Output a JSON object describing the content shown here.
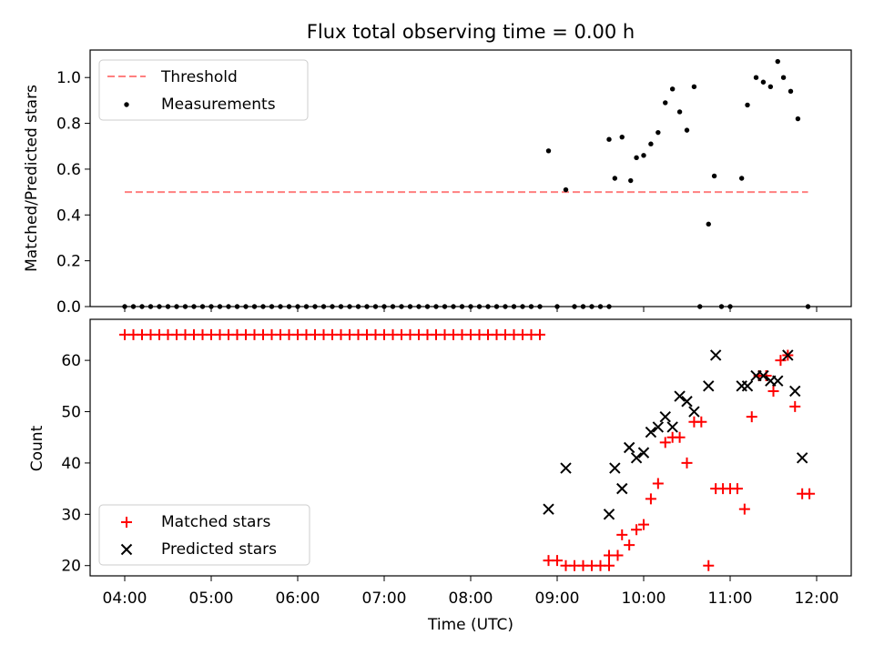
{
  "chart_data": [
    {
      "type": "scatter",
      "title": "Flux total observing time = 0.00 h",
      "xlabel": "",
      "ylabel": "Matched/Predicted stars",
      "ylim": [
        0,
        1.12
      ],
      "yticks": [
        "0.0",
        "0.2",
        "0.4",
        "0.6",
        "0.8",
        "1.0"
      ],
      "legend": {
        "position": "upper-left",
        "entries": [
          "Threshold",
          "Measurements"
        ]
      },
      "threshold": {
        "name": "Threshold",
        "value": 0.5,
        "x_start": "04:00",
        "x_end": "11:54",
        "color": "#ff7f7f"
      },
      "measurements": {
        "name": "Measurements",
        "color": "#000000",
        "zero_points_x": [
          "04:00",
          "04:06",
          "04:12",
          "04:18",
          "04:24",
          "04:30",
          "04:36",
          "04:42",
          "04:48",
          "04:54",
          "05:00",
          "05:06",
          "05:12",
          "05:18",
          "05:24",
          "05:30",
          "05:36",
          "05:42",
          "05:48",
          "05:54",
          "06:00",
          "06:06",
          "06:12",
          "06:18",
          "06:24",
          "06:30",
          "06:36",
          "06:42",
          "06:48",
          "06:54",
          "07:00",
          "07:06",
          "07:12",
          "07:18",
          "07:24",
          "07:30",
          "07:36",
          "07:42",
          "07:48",
          "07:54",
          "08:00",
          "08:06",
          "08:12",
          "08:18",
          "08:24",
          "08:30",
          "08:36",
          "08:42",
          "08:48",
          "09:00",
          "09:12",
          "09:18",
          "09:24",
          "09:30",
          "09:36",
          "10:39",
          "10:54",
          "11:00",
          "11:54"
        ],
        "points": [
          {
            "x": "08:54",
            "y": 0.68
          },
          {
            "x": "09:06",
            "y": 0.51
          },
          {
            "x": "09:36",
            "y": 0.73
          },
          {
            "x": "09:40",
            "y": 0.56
          },
          {
            "x": "09:45",
            "y": 0.74
          },
          {
            "x": "09:51",
            "y": 0.55
          },
          {
            "x": "09:55",
            "y": 0.65
          },
          {
            "x": "10:00",
            "y": 0.66
          },
          {
            "x": "10:05",
            "y": 0.71
          },
          {
            "x": "10:10",
            "y": 0.76
          },
          {
            "x": "10:15",
            "y": 0.89
          },
          {
            "x": "10:20",
            "y": 0.95
          },
          {
            "x": "10:25",
            "y": 0.85
          },
          {
            "x": "10:30",
            "y": 0.77
          },
          {
            "x": "10:35",
            "y": 0.96
          },
          {
            "x": "10:45",
            "y": 0.36
          },
          {
            "x": "10:49",
            "y": 0.57
          },
          {
            "x": "11:08",
            "y": 0.56
          },
          {
            "x": "11:12",
            "y": 0.88
          },
          {
            "x": "11:18",
            "y": 1.0
          },
          {
            "x": "11:23",
            "y": 0.98
          },
          {
            "x": "11:28",
            "y": 0.96
          },
          {
            "x": "11:33",
            "y": 1.07
          },
          {
            "x": "11:37",
            "y": 1.0
          },
          {
            "x": "11:42",
            "y": 0.94
          },
          {
            "x": "11:47",
            "y": 0.82
          }
        ]
      }
    },
    {
      "type": "scatter",
      "title": "",
      "xlabel": "Time (UTC)",
      "ylabel": "Count",
      "xlim": [
        "03:36",
        "12:24"
      ],
      "xticks": [
        "04:00",
        "05:00",
        "06:00",
        "07:00",
        "08:00",
        "09:00",
        "10:00",
        "11:00",
        "12:00"
      ],
      "ylim": [
        18,
        68
      ],
      "yticks": [
        "20",
        "30",
        "40",
        "50",
        "60"
      ],
      "legend": {
        "position": "lower-left",
        "entries": [
          "Matched stars",
          "Predicted stars"
        ]
      },
      "series": [
        {
          "name": "Matched stars",
          "marker": "plus",
          "color": "#ff0000",
          "constant_run": {
            "y": 65,
            "x_start": "04:00",
            "x_end": "08:48",
            "step_minutes": 6
          },
          "points": [
            {
              "x": "08:54",
              "y": 21
            },
            {
              "x": "09:00",
              "y": 21
            },
            {
              "x": "09:06",
              "y": 20
            },
            {
              "x": "09:12",
              "y": 20
            },
            {
              "x": "09:18",
              "y": 20
            },
            {
              "x": "09:24",
              "y": 20
            },
            {
              "x": "09:30",
              "y": 20
            },
            {
              "x": "09:36",
              "y": 20
            },
            {
              "x": "09:36",
              "y": 22
            },
            {
              "x": "09:42",
              "y": 22
            },
            {
              "x": "09:45",
              "y": 26
            },
            {
              "x": "09:50",
              "y": 24
            },
            {
              "x": "09:55",
              "y": 27
            },
            {
              "x": "10:00",
              "y": 28
            },
            {
              "x": "10:05",
              "y": 33
            },
            {
              "x": "10:10",
              "y": 36
            },
            {
              "x": "10:15",
              "y": 44
            },
            {
              "x": "10:20",
              "y": 45
            },
            {
              "x": "10:25",
              "y": 45
            },
            {
              "x": "10:30",
              "y": 40
            },
            {
              "x": "10:35",
              "y": 48
            },
            {
              "x": "10:40",
              "y": 48
            },
            {
              "x": "10:45",
              "y": 20
            },
            {
              "x": "10:50",
              "y": 35
            },
            {
              "x": "10:55",
              "y": 35
            },
            {
              "x": "11:00",
              "y": 35
            },
            {
              "x": "11:05",
              "y": 35
            },
            {
              "x": "11:10",
              "y": 31
            },
            {
              "x": "11:15",
              "y": 49
            },
            {
              "x": "11:20",
              "y": 57
            },
            {
              "x": "11:25",
              "y": 57
            },
            {
              "x": "11:30",
              "y": 54
            },
            {
              "x": "11:35",
              "y": 60
            },
            {
              "x": "11:40",
              "y": 61
            },
            {
              "x": "11:45",
              "y": 51
            },
            {
              "x": "11:50",
              "y": 34
            },
            {
              "x": "11:55",
              "y": 34
            }
          ]
        },
        {
          "name": "Predicted stars",
          "marker": "x",
          "color": "#000000",
          "points": [
            {
              "x": "08:54",
              "y": 31
            },
            {
              "x": "09:06",
              "y": 39
            },
            {
              "x": "09:36",
              "y": 30
            },
            {
              "x": "09:40",
              "y": 39
            },
            {
              "x": "09:45",
              "y": 35
            },
            {
              "x": "09:50",
              "y": 43
            },
            {
              "x": "09:55",
              "y": 41
            },
            {
              "x": "10:00",
              "y": 42
            },
            {
              "x": "10:05",
              "y": 46
            },
            {
              "x": "10:10",
              "y": 47
            },
            {
              "x": "10:15",
              "y": 49
            },
            {
              "x": "10:20",
              "y": 47
            },
            {
              "x": "10:25",
              "y": 53
            },
            {
              "x": "10:30",
              "y": 52
            },
            {
              "x": "10:35",
              "y": 50
            },
            {
              "x": "10:45",
              "y": 55
            },
            {
              "x": "10:50",
              "y": 61
            },
            {
              "x": "11:08",
              "y": 55
            },
            {
              "x": "11:12",
              "y": 55
            },
            {
              "x": "11:18",
              "y": 57
            },
            {
              "x": "11:23",
              "y": 57
            },
            {
              "x": "11:28",
              "y": 56
            },
            {
              "x": "11:33",
              "y": 56
            },
            {
              "x": "11:40",
              "y": 61
            },
            {
              "x": "11:45",
              "y": 54
            },
            {
              "x": "11:50",
              "y": 41
            }
          ]
        }
      ]
    }
  ]
}
